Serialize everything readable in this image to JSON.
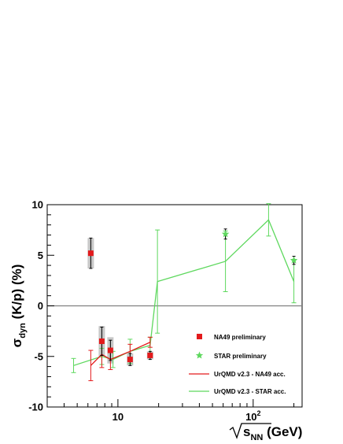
{
  "chart_data": {
    "type": "scatter",
    "x_scale": "log",
    "xlim": [
      3,
      230
    ],
    "ylim": [
      -10,
      10
    ],
    "grid": false,
    "legend_position": "bottom-right",
    "y_title": {
      "main": "σ",
      "sub": "dyn",
      "rest": " (K/p) (%)"
    },
    "x_title": {
      "main": "s",
      "sub": "NN",
      "rest": " (GeV)"
    },
    "yticks": [
      {
        "value": -10,
        "label": "-10"
      },
      {
        "value": -5,
        "label": "-5"
      },
      {
        "value": 0,
        "label": "0"
      },
      {
        "value": 5,
        "label": "5"
      },
      {
        "value": 10,
        "label": "10"
      }
    ],
    "xticks": [
      {
        "value": 10,
        "label": "10"
      },
      {
        "value": 100,
        "label": "10",
        "sup": "2"
      }
    ],
    "series": [
      {
        "name": "NA49 preliminary",
        "kind": "points",
        "marker": "square",
        "color": "#e31a1c",
        "sys_color": "#c8c8c8",
        "points": [
          {
            "x": 6.3,
            "y": 5.2,
            "err": 1.5,
            "sys": 1.5
          },
          {
            "x": 7.6,
            "y": -3.5,
            "err": 1.4,
            "sys": 1.5
          },
          {
            "x": 8.8,
            "y": -4.4,
            "err": 1.0,
            "sys": 1.3
          },
          {
            "x": 12.3,
            "y": -5.3,
            "err": 0.6,
            "sys": 0.6
          },
          {
            "x": 17.3,
            "y": -4.9,
            "err": 0.4,
            "sys": 0.4
          }
        ]
      },
      {
        "name": "STAR preliminary",
        "kind": "points",
        "marker": "star",
        "color": "#5ed85e",
        "points": [
          {
            "x": 62.4,
            "y": 7.1,
            "err": 0.5
          },
          {
            "x": 200,
            "y": 4.5,
            "err": 0.4
          }
        ]
      },
      {
        "name": "UrQMD v2.3 - NA49 acc.",
        "kind": "line",
        "color": "#e31a1c",
        "points": [
          {
            "x": 6.3,
            "y": -5.9,
            "err": 1.5
          },
          {
            "x": 7.6,
            "y": -4.8,
            "err": 1.3
          },
          {
            "x": 8.8,
            "y": -5.3,
            "err": 1.0
          },
          {
            "x": 12.3,
            "y": -4.5,
            "err": 0.7
          },
          {
            "x": 17.3,
            "y": -3.6,
            "err": 0.5
          }
        ]
      },
      {
        "name": "UrQMD v2.3 - STAR acc.",
        "kind": "line",
        "color": "#5ed85e",
        "points": [
          {
            "x": 4.7,
            "y": -5.9,
            "err": 0.7
          },
          {
            "x": 7.6,
            "y": -5.0,
            "err": 0.8
          },
          {
            "x": 9.2,
            "y": -5.3,
            "err": 0.8
          },
          {
            "x": 12.3,
            "y": -4.5,
            "err": 1.2
          },
          {
            "x": 17.3,
            "y": -3.9,
            "err": 0.8
          },
          {
            "x": 19.6,
            "y": 2.4,
            "err": 5.1
          },
          {
            "x": 62.4,
            "y": 4.4,
            "err": 3.0
          },
          {
            "x": 130,
            "y": 8.5,
            "err": 1.6
          },
          {
            "x": 200,
            "y": 2.4,
            "err": 2.1
          }
        ]
      }
    ]
  }
}
